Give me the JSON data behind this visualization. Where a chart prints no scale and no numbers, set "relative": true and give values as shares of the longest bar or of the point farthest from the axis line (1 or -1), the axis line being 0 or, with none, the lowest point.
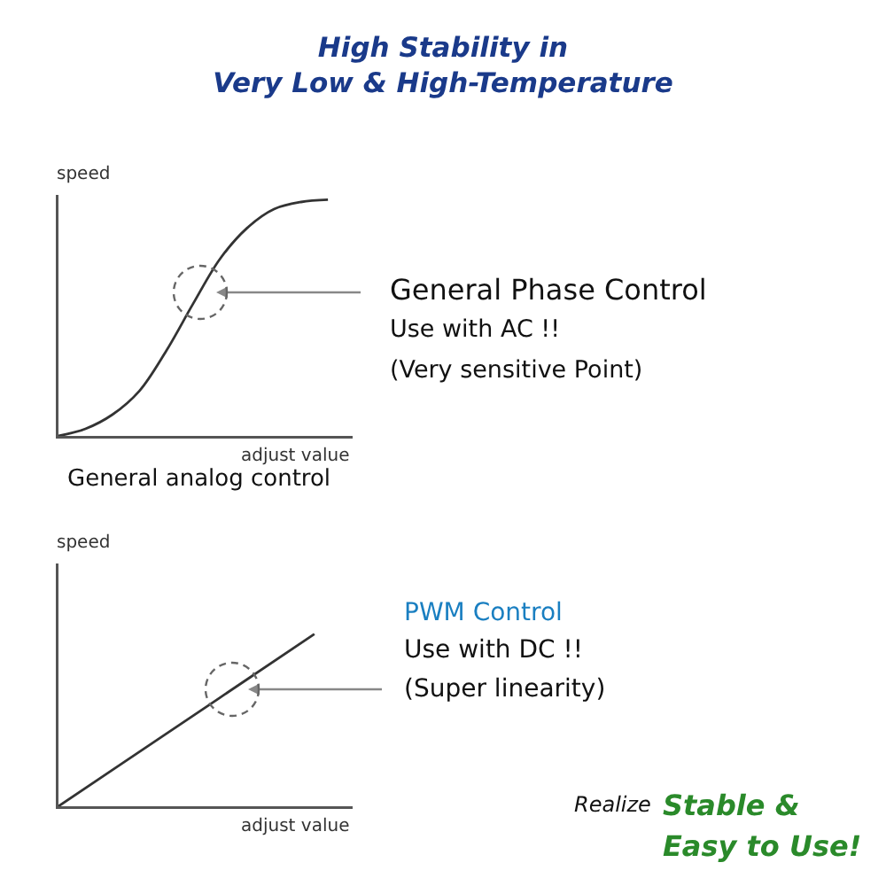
{
  "chart_data": [
    {
      "type": "line",
      "title": "High Stability in\nVery Low & High-Temperature",
      "xlabel": "adjust value",
      "ylabel": "speed",
      "relative": true,
      "color": "#333333",
      "categories": [
        null,
        null,
        null,
        null,
        null,
        null,
        null,
        null,
        null,
        null,
        null
      ],
      "values": [
        0,
        0.03,
        0.09,
        0.19,
        0.36,
        0.56,
        0.75,
        0.88,
        0.96,
        0.99,
        1
      ],
      "annotations": [
        "General Phase Control",
        "Use with AC !!",
        "(Very sensitive Point)",
        "General analog control"
      ]
    },
    {
      "type": "line",
      "xlabel": "adjust value",
      "ylabel": "speed",
      "relative": true,
      "color": "#333333",
      "categories": [
        null,
        null,
        null,
        null,
        null
      ],
      "values": [
        0,
        0.25,
        0.5,
        0.75,
        1
      ],
      "annotations": [
        "PWM Control",
        "Use with DC !!",
        "(Super linearity)",
        "Realize",
        "Stable &",
        "Easy to Use!"
      ]
    }
  ]
}
